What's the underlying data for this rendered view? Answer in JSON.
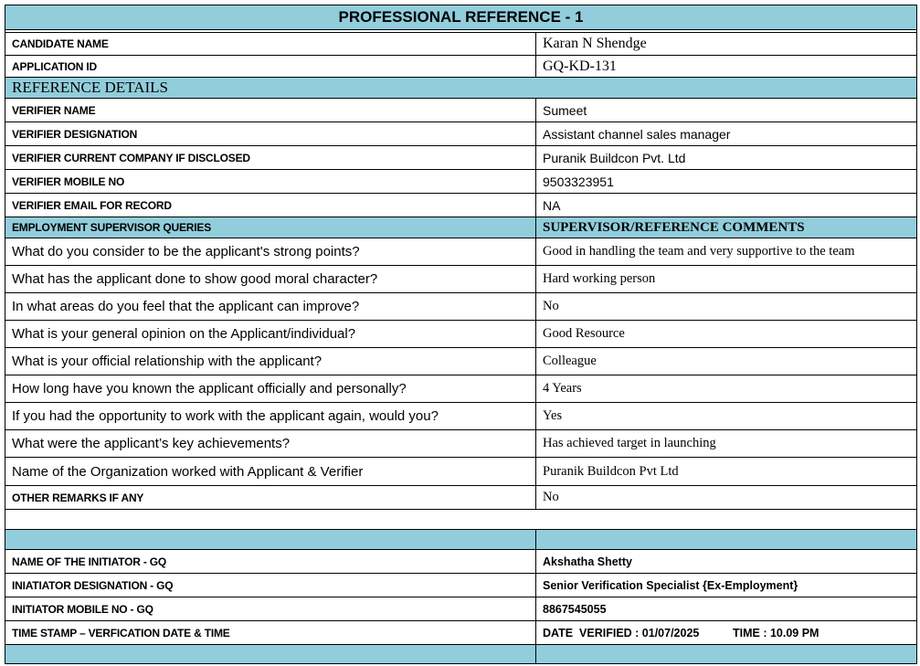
{
  "title": "PROFESSIONAL REFERENCE - 1",
  "candidate": [
    {
      "label": "CANDIDATE  NAME",
      "value": "Karan N Shendge"
    },
    {
      "label": "APPLICATION ID",
      "value": "GQ-KD-131"
    }
  ],
  "reference_section": "REFERENCE DETAILS",
  "verifier": [
    {
      "label": "VERIFIER NAME",
      "value": "Sumeet"
    },
    {
      "label": "VERIFIER DESIGNATION",
      "value": "Assistant channel sales manager"
    },
    {
      "label": "VERIFIER CURRENT COMPANY IF DISCLOSED",
      "value": "Puranik Buildcon Pvt. Ltd"
    },
    {
      "label": "VERIFIER MOBILE NO",
      "value": "9503323951"
    },
    {
      "label": "VERIFIER EMAIL FOR RECORD",
      "value": "NA"
    }
  ],
  "queries_header": {
    "left": "EMPLOYMENT SUPERVISOR QUERIES",
    "right": "SUPERVISOR/REFERENCE COMMENTS"
  },
  "queries": [
    {
      "q": "What do you consider to be the applicant's strong points?",
      "a": "Good in handling the team and very supportive to the team"
    },
    {
      "q": "What has the applicant done to show good moral character?",
      "a": "Hard working person"
    },
    {
      "q": "In what areas do you feel that the applicant can improve?",
      "a": "No"
    },
    {
      "q": "What is your general opinion on the Applicant/individual?",
      "a": "Good Resource"
    },
    {
      "q": "What is your official relationship with the applicant?",
      "a": "Colleague"
    },
    {
      "q": "How long have you known the applicant officially and personally?",
      "a": "4 Years"
    },
    {
      "q": "If you had the opportunity to work with the applicant again, would you?",
      "a": "Yes"
    },
    {
      "q": "What were the applicant’s key achievements?",
      "a": "Has achieved target in launching"
    },
    {
      "q": "Name of the Organization worked with Applicant & Verifier",
      "a": "Puranik Buildcon Pvt Ltd"
    }
  ],
  "other_remarks": {
    "label": "OTHER REMARKS IF ANY",
    "value": "No"
  },
  "initiator": [
    {
      "label": "NAME OF THE INITIATOR - GQ",
      "value": "Akshatha Shetty"
    },
    {
      "label": "INIATIATOR DESIGNATION - GQ",
      "value": "Senior Verification Specialist {Ex-Employment}"
    },
    {
      "label": "INITIATOR MOBILE NO - GQ",
      "value": "8867545055"
    }
  ],
  "timestamp": {
    "label": "TIME STAMP – VERFICATION DATE & TIME",
    "date": "DATE  VERIFIED : 01/07/2025",
    "time": "TIME : 10.09 PM"
  },
  "colors": {
    "header_bg": "#92cddc"
  }
}
